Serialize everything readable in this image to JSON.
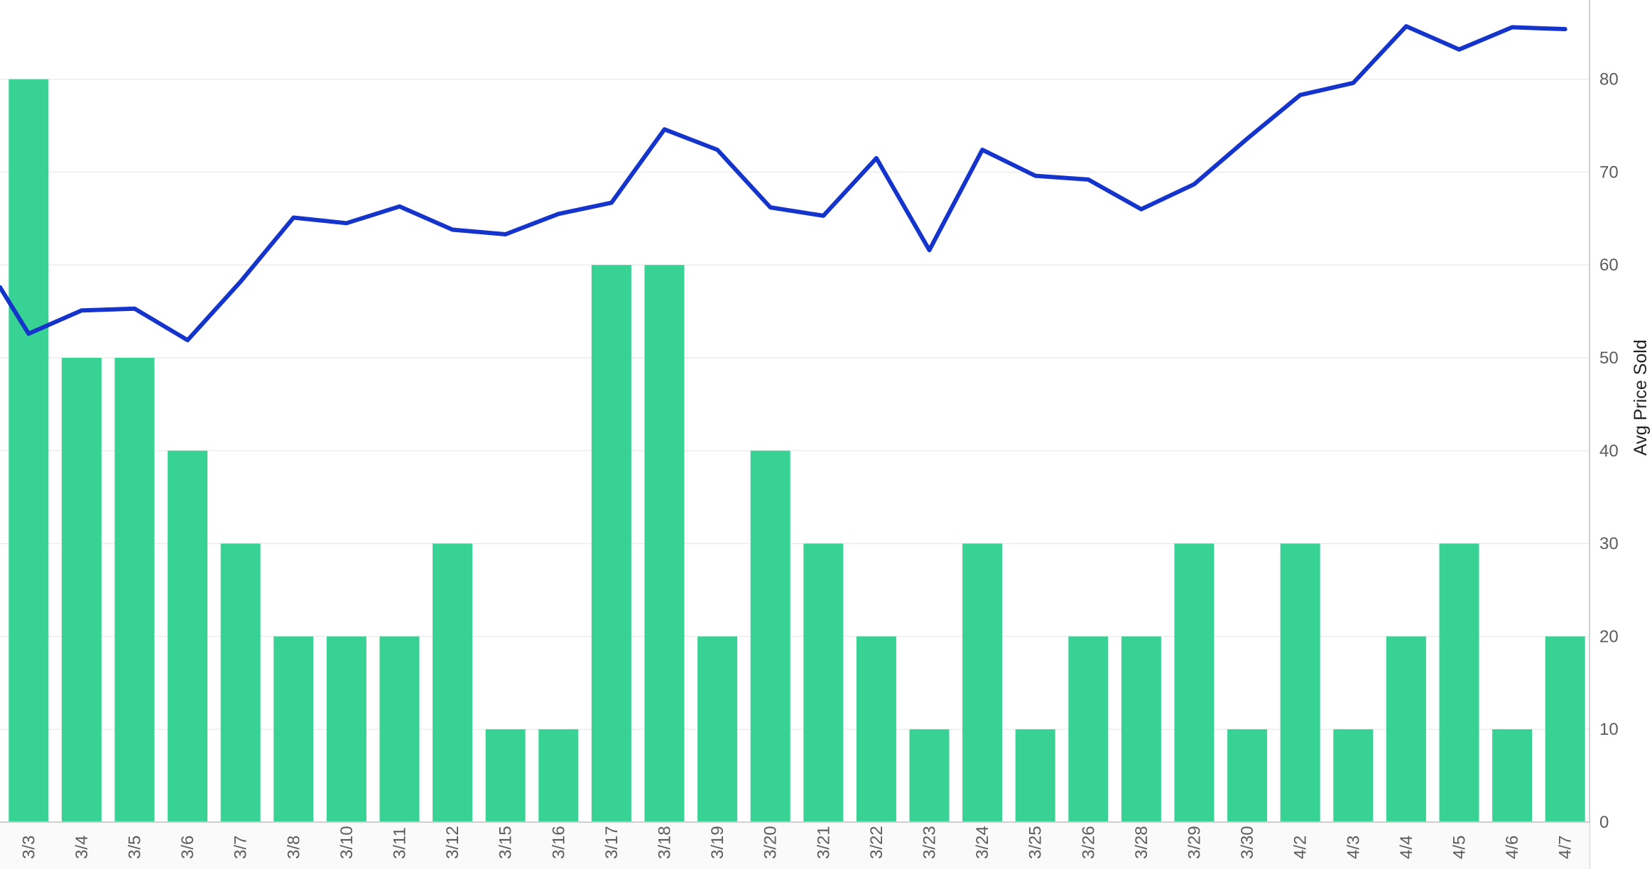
{
  "chart_data": {
    "type": "bar",
    "categories": [
      "3/3",
      "3/4",
      "3/5",
      "3/6",
      "3/7",
      "3/8",
      "3/10",
      "3/11",
      "3/12",
      "3/15",
      "3/16",
      "3/17",
      "3/18",
      "3/19",
      "3/20",
      "3/21",
      "3/22",
      "3/23",
      "3/24",
      "3/25",
      "3/26",
      "3/28",
      "3/29",
      "3/30",
      "4/2",
      "4/3",
      "4/4",
      "4/5",
      "4/6",
      "4/7"
    ],
    "series": [
      {
        "type": "bar",
        "values": [
          80,
          50,
          50,
          40,
          30,
          20,
          20,
          20,
          30,
          10,
          10,
          60,
          60,
          20,
          40,
          30,
          20,
          10,
          30,
          10,
          20,
          20,
          30,
          10,
          30,
          10,
          20,
          30,
          10,
          20
        ],
        "color": "#38d394"
      },
      {
        "type": "line",
        "name": "Avg Price Sold",
        "values": [
          52.6,
          55.1,
          55.3,
          51.9,
          58.2,
          65.1,
          64.5,
          66.3,
          63.8,
          63.3,
          65.5,
          66.7,
          74.6,
          72.4,
          66.2,
          65.3,
          71.5,
          61.6,
          72.4,
          69.6,
          69.2,
          66,
          68.7,
          73.6,
          78.3,
          79.6,
          85.7,
          83.2,
          85.6,
          85.4
        ],
        "color": "#1434cb"
      }
    ],
    "y_axis": {
      "label": "Avg Price Sold",
      "ticks": [
        "0",
        "10",
        "20",
        "30",
        "40",
        "50",
        "60",
        "70",
        "80"
      ],
      "range": [
        0,
        90
      ]
    },
    "grid": true,
    "colors": {
      "bar": "#38d394",
      "line": "#1434cb",
      "grid": "#ececec",
      "axis": "#cfcfcf"
    }
  }
}
